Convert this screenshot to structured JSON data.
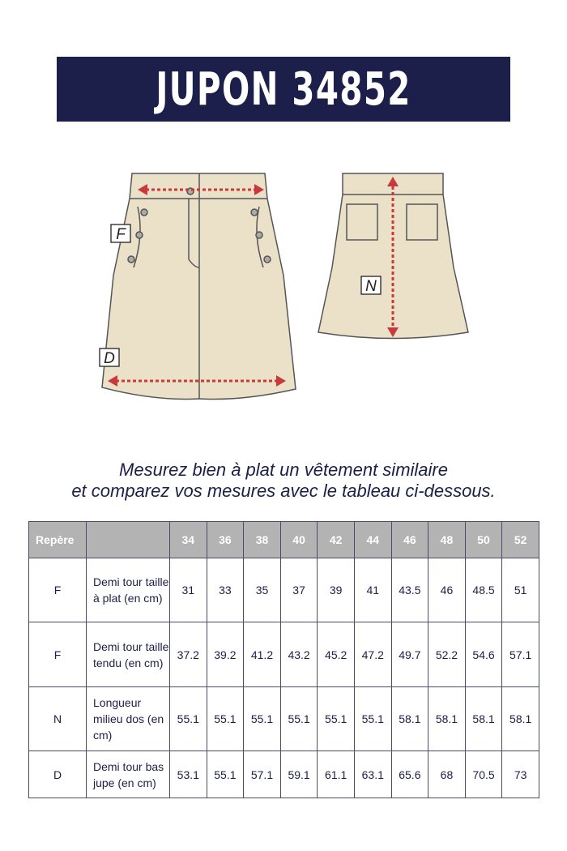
{
  "title": "JUPON 34852",
  "markers": {
    "f": "F",
    "d": "D",
    "n": "N"
  },
  "instructions": {
    "line1": "Mesurez bien à plat un vêtement similaire",
    "line2": "et comparez vos mesures avec le tableau ci-dessous."
  },
  "colors": {
    "banner": "#1c1f4a",
    "header": "#b3b3b3",
    "fabric": "#ebe0c8",
    "arrow": "#c8393c"
  },
  "table": {
    "header": {
      "repere": "Repère",
      "desc": "",
      "sizes": [
        "34",
        "36",
        "38",
        "40",
        "42",
        "44",
        "46",
        "48",
        "50",
        "52"
      ]
    },
    "rows": [
      {
        "repere": "F",
        "desc": "Demi tour taille à plat (en cm)",
        "values": [
          "31",
          "33",
          "35",
          "37",
          "39",
          "41",
          "43.5",
          "46",
          "48.5",
          "51"
        ]
      },
      {
        "repere": "F",
        "desc": "Demi tour taille tendu (en cm)",
        "values": [
          "37.2",
          "39.2",
          "41.2",
          "43.2",
          "45.2",
          "47.2",
          "49.7",
          "52.2",
          "54.6",
          "57.1"
        ]
      },
      {
        "repere": "N",
        "desc": "Longueur milieu dos (en cm)",
        "values": [
          "55.1",
          "55.1",
          "55.1",
          "55.1",
          "55.1",
          "55.1",
          "58.1",
          "58.1",
          "58.1",
          "58.1"
        ]
      },
      {
        "repere": "D",
        "desc": "Demi tour bas jupe (en cm)",
        "values": [
          "53.1",
          "55.1",
          "57.1",
          "59.1",
          "61.1",
          "63.1",
          "65.6",
          "68",
          "70.5",
          "73"
        ]
      }
    ]
  }
}
